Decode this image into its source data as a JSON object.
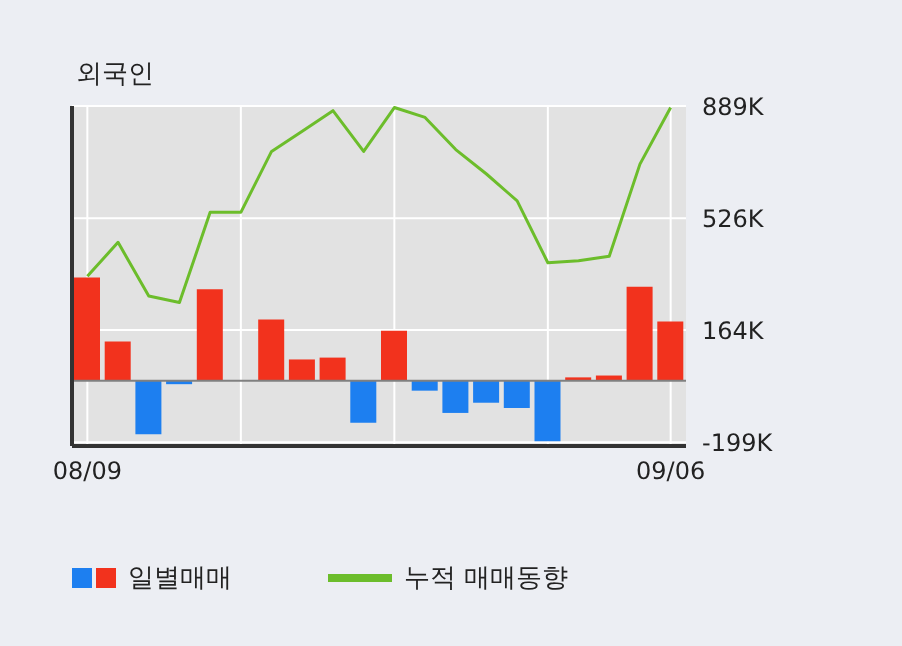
{
  "chart_data": {
    "type": "bar",
    "title": "외국인",
    "categories": [
      "08/09",
      null,
      null,
      null,
      null,
      null,
      null,
      null,
      null,
      null,
      null,
      null,
      null,
      null,
      null,
      null,
      null,
      null,
      null,
      "09/06"
    ],
    "series": [
      {
        "name": "일별매매",
        "values": [
          334000,
          127000,
          -173000,
          -11000,
          296000,
          0,
          198000,
          69000,
          75000,
          -136000,
          162000,
          -32000,
          -104000,
          -71000,
          -88000,
          -196000,
          11000,
          17000,
          304000,
          192000
        ],
        "colors": [
          "#f2321d",
          "#f2321d",
          "#1d7ff0",
          "#1d7ff0",
          "#f2321d",
          "#f2321d",
          "#f2321d",
          "#f2321d",
          "#f2321d",
          "#1d7ff0",
          "#f2321d",
          "#1d7ff0",
          "#1d7ff0",
          "#1d7ff0",
          "#1d7ff0",
          "#1d7ff0",
          "#f2321d",
          "#f2321d",
          "#f2321d",
          "#f2321d"
        ]
      },
      {
        "name": "누적 매매동향",
        "type": "line",
        "color": "#6cbd2b",
        "values": [
          338000,
          448000,
          274000,
          253000,
          545000,
          545000,
          742000,
          807000,
          874000,
          742000,
          884000,
          852000,
          748000,
          669000,
          582000,
          382000,
          388000,
          403000,
          701000,
          884000
        ]
      }
    ],
    "ylim": [
      -211000,
      889000
    ],
    "yticks": [
      {
        "value": 889000,
        "label": "889K"
      },
      {
        "value": 526000,
        "label": "526K"
      },
      {
        "value": 164000,
        "label": "164K"
      },
      {
        "value": -199000,
        "label": "-199K"
      }
    ],
    "ref_lines": [
      {
        "axis": "y",
        "value": 0,
        "color": "#808080"
      }
    ],
    "grid": true,
    "legend": "bottom",
    "marker": "none"
  }
}
